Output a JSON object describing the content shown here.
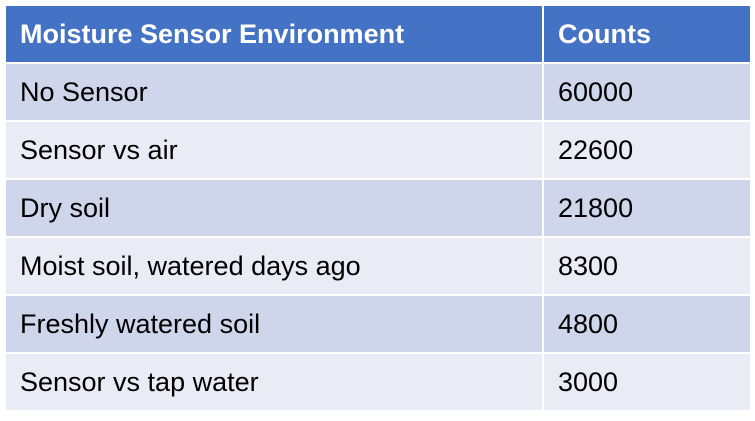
{
  "table": {
    "headers": [
      "Moisture Sensor Environment",
      "Counts"
    ],
    "rows": [
      [
        "No Sensor",
        "60000"
      ],
      [
        "Sensor vs air",
        "22600"
      ],
      [
        "Dry soil",
        "21800"
      ],
      [
        "Moist soil, watered days ago",
        "8300"
      ],
      [
        "Freshly watered soil",
        "4800"
      ],
      [
        "Sensor vs tap water",
        "3000"
      ]
    ]
  },
  "colors": {
    "header_bg": "#4472c4",
    "header_text": "#ffffff",
    "row_odd_bg": "#cfd5ea",
    "row_even_bg": "#e9ebf5"
  }
}
